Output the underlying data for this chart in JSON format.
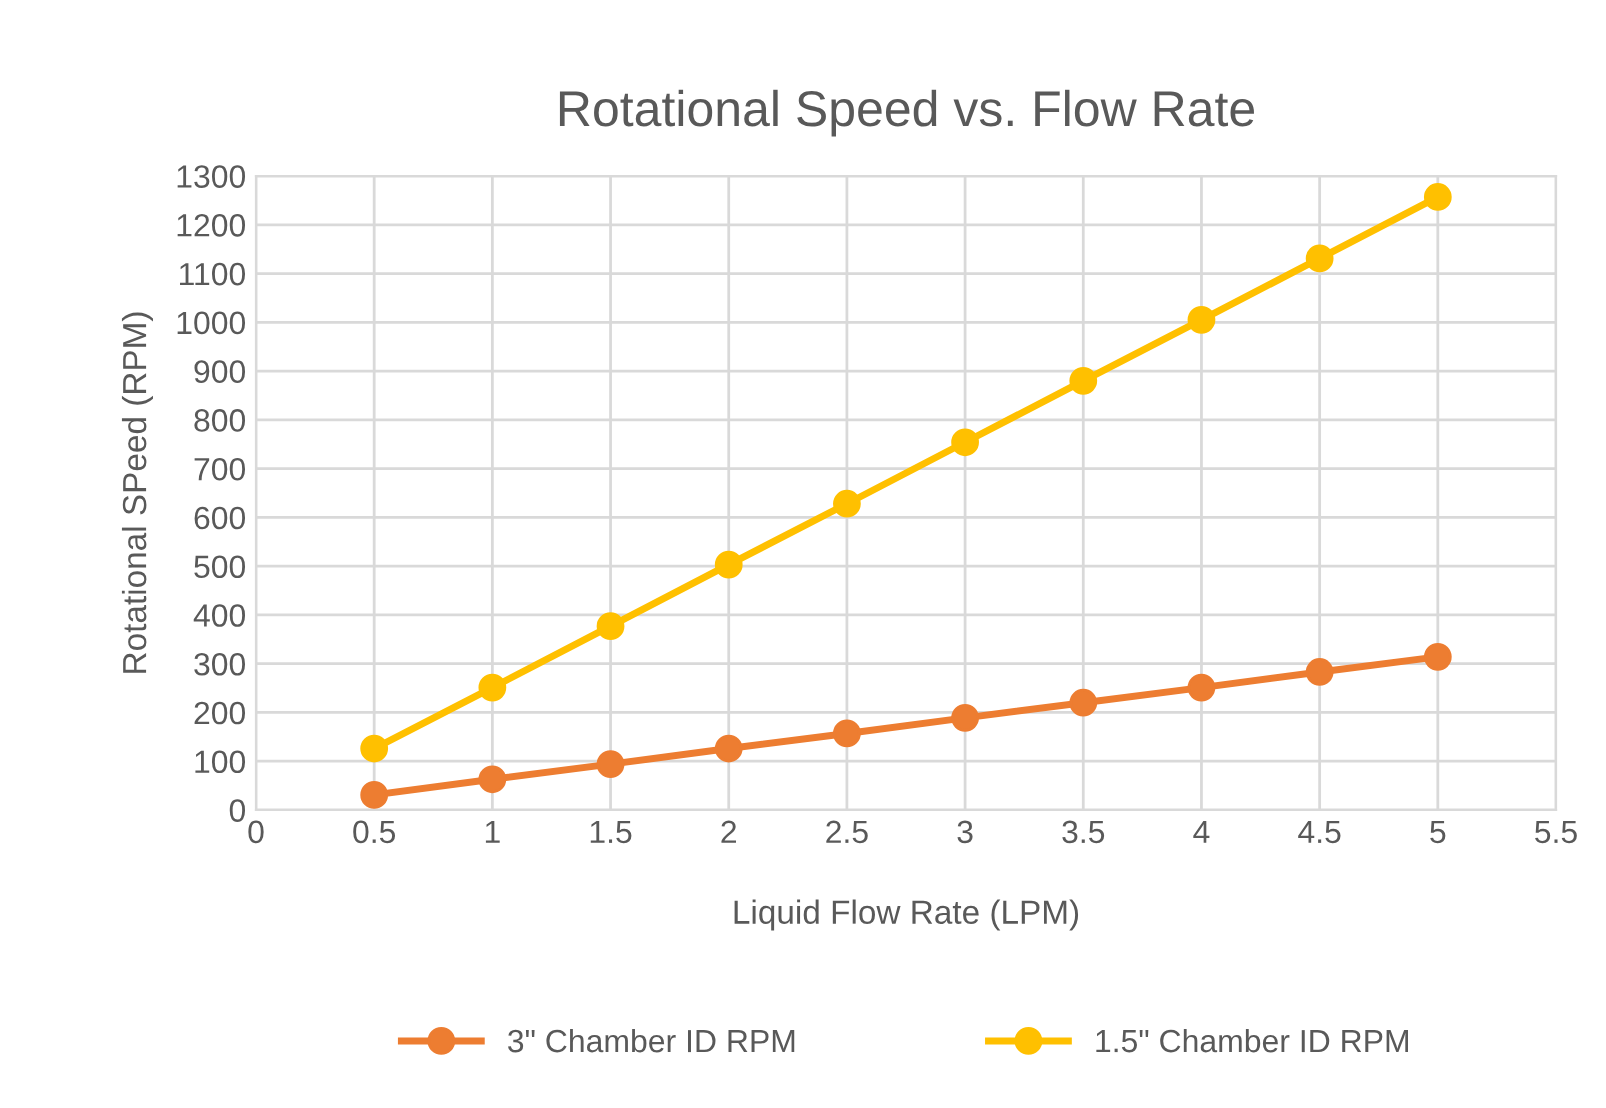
{
  "chart_data": {
    "type": "line",
    "title": "Rotational Speed vs. Flow Rate",
    "xlabel": "Liquid Flow Rate (LPM)",
    "ylabel": "Rotational SPeed (RPM)",
    "x": [
      0.5,
      1,
      1.5,
      2,
      2.5,
      3,
      3.5,
      4,
      4.5,
      5
    ],
    "series": [
      {
        "name": "3\" Chamber ID RPM",
        "color": "#ed7d31",
        "values": [
          31,
          63,
          94,
          126,
          157,
          189,
          220,
          251,
          283,
          314
        ]
      },
      {
        "name": "1.5\" Chamber ID RPM",
        "color": "#ffc000",
        "values": [
          126,
          251,
          377,
          503,
          628,
          754,
          880,
          1005,
          1131,
          1257
        ]
      }
    ],
    "xlim": [
      0,
      5.5
    ],
    "xticks": [
      0,
      0.5,
      1,
      1.5,
      2,
      2.5,
      3,
      3.5,
      4,
      4.5,
      5,
      5.5
    ],
    "ylim": [
      0,
      1300
    ],
    "yticks": [
      0,
      100,
      200,
      300,
      400,
      500,
      600,
      700,
      800,
      900,
      1000,
      1100,
      1200,
      1300
    ],
    "grid": true,
    "legend": "bottom",
    "marker": "circle",
    "line_style": "solid"
  }
}
